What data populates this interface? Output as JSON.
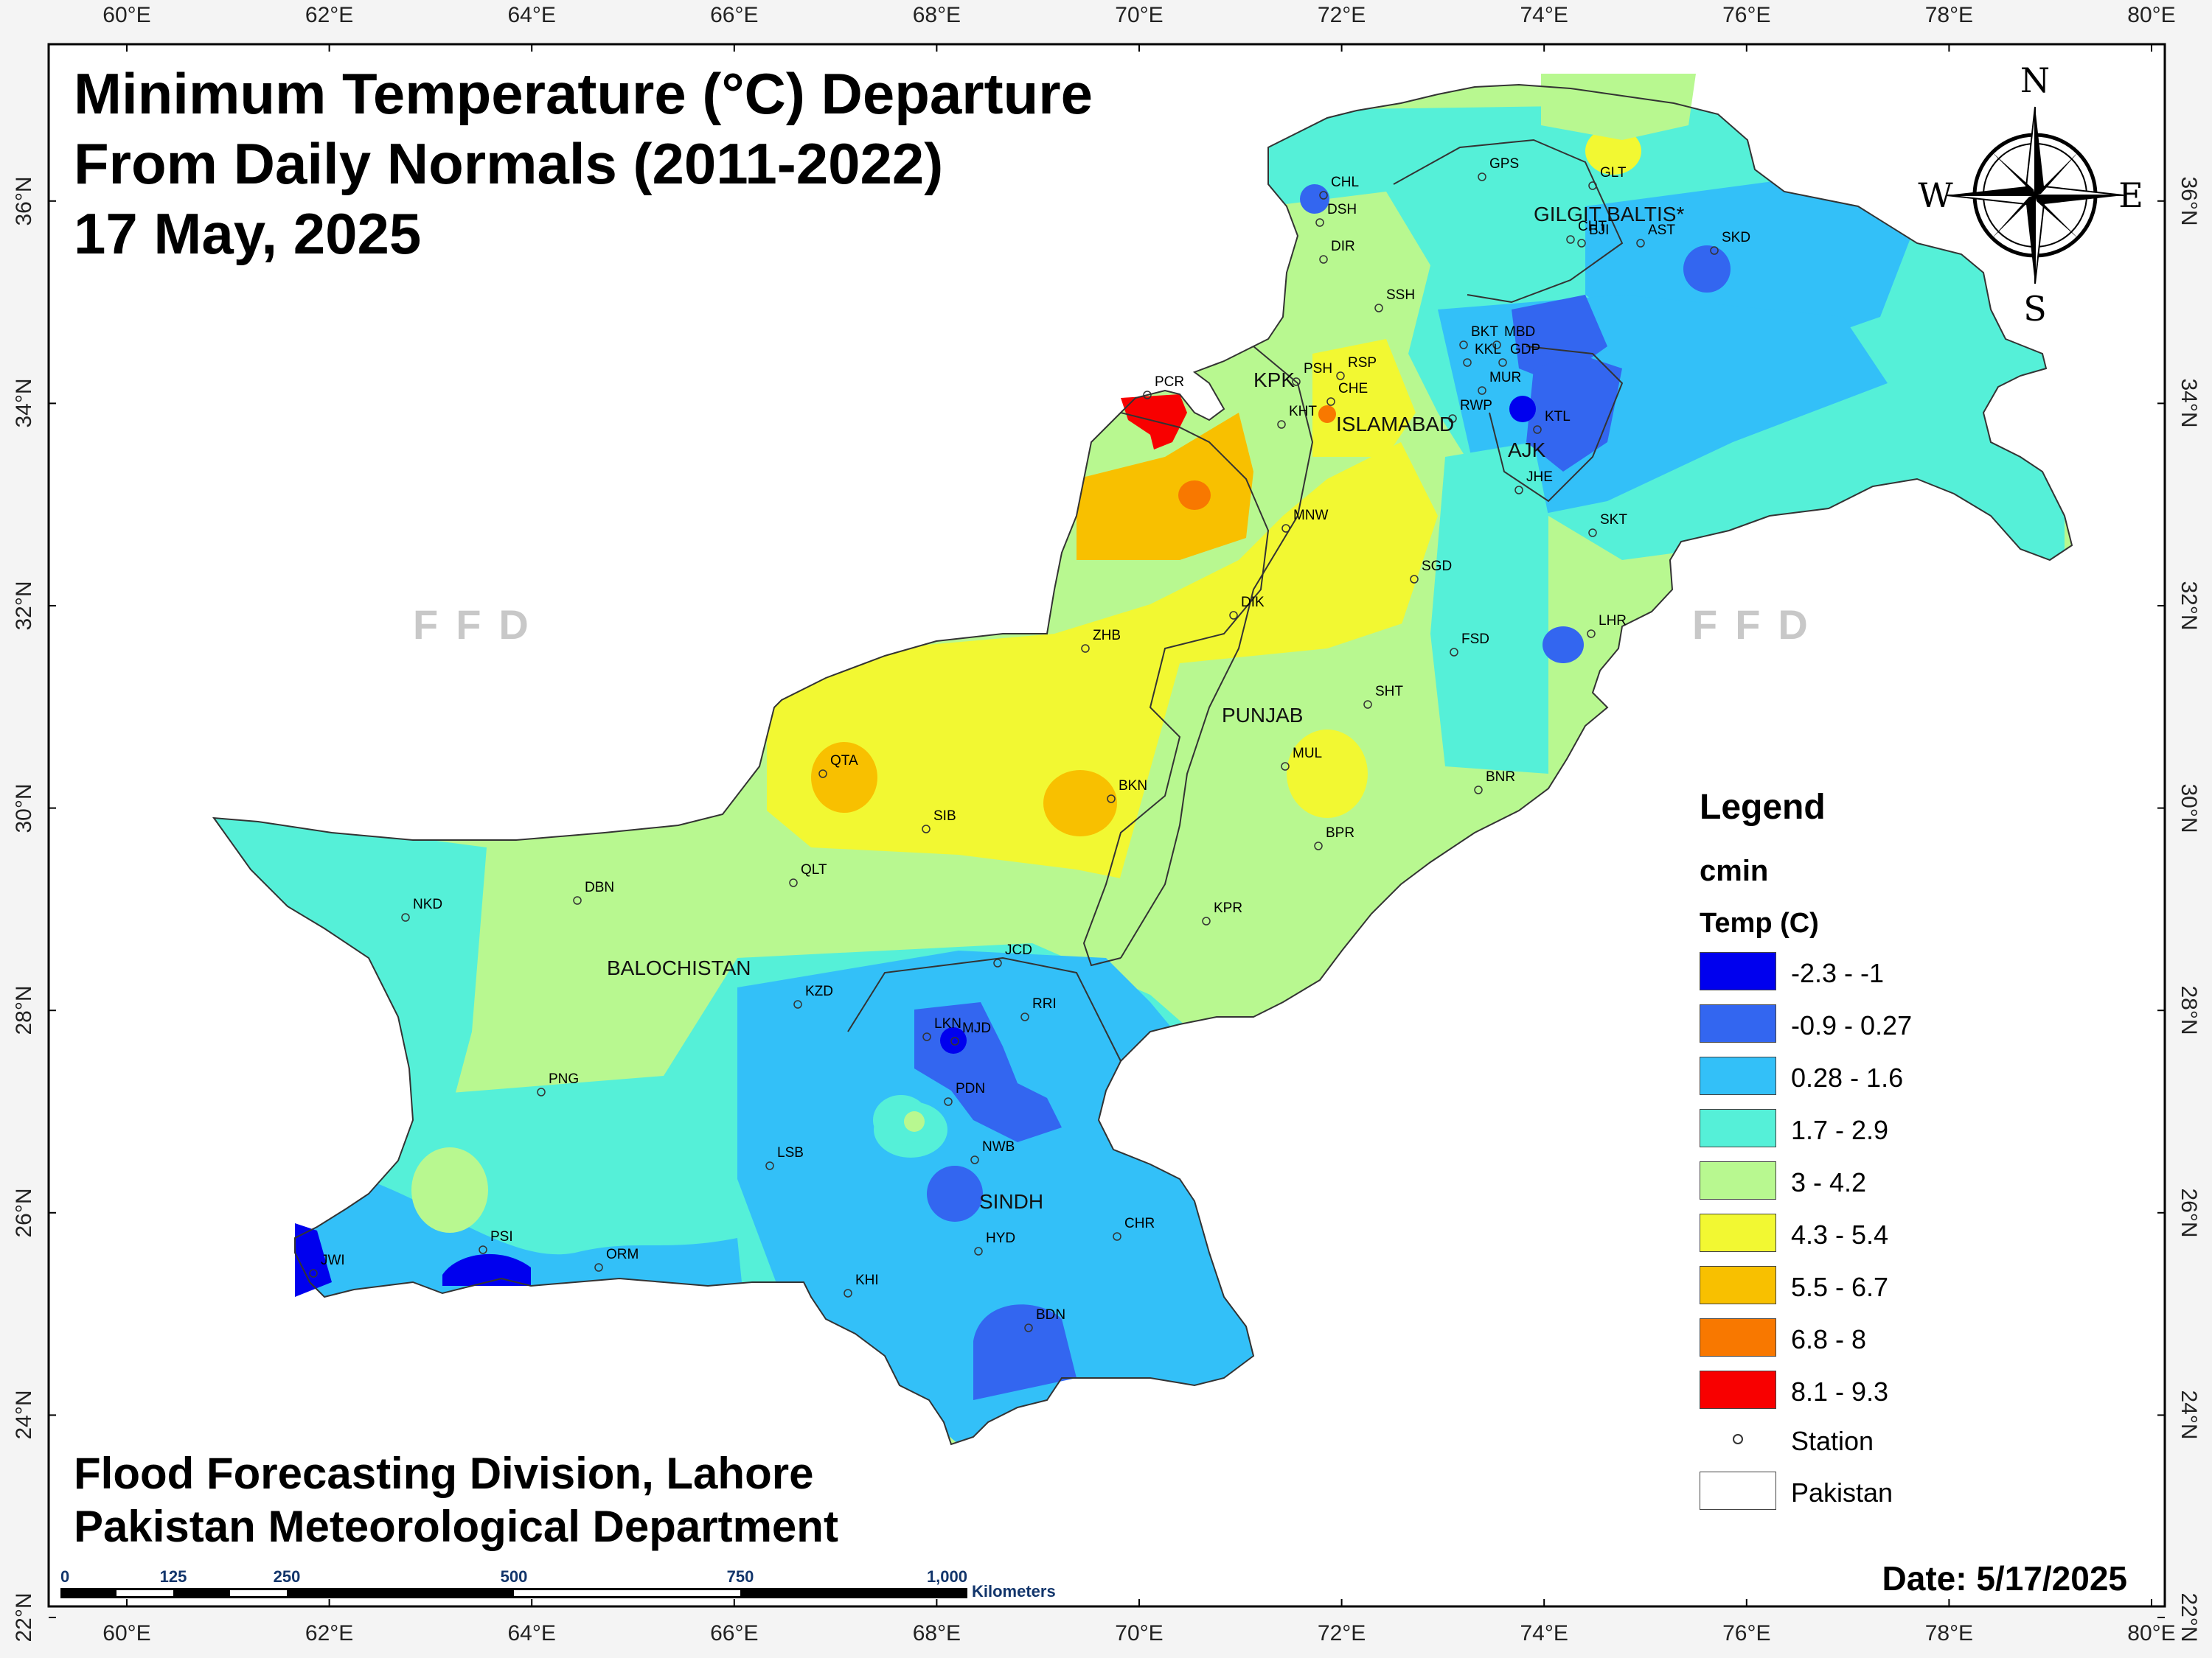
{
  "title": {
    "line1": "Minimum Temperature (°C) Departure",
    "line2": "From Daily Normals (2011-2022)",
    "line3": "17 May, 2025"
  },
  "footer": {
    "line1": "Flood Forecasting Division, Lahore",
    "line2": "Pakistan Meteorological Department"
  },
  "date_label": "Date: 5/17/2025",
  "watermark": "FFD",
  "axes": {
    "longitudes": [
      "60°E",
      "62°E",
      "64°E",
      "66°E",
      "68°E",
      "70°E",
      "72°E",
      "74°E",
      "76°E",
      "78°E",
      "80°E"
    ],
    "latitudes": [
      "36°N",
      "34°N",
      "32°N",
      "30°N",
      "28°N",
      "26°N",
      "24°N",
      "22°N"
    ]
  },
  "compass": {
    "n": "N",
    "s": "S",
    "e": "E",
    "w": "W"
  },
  "legend": {
    "heading": "Legend",
    "layer": "cmin",
    "field": "Temp (C)",
    "classes": [
      {
        "label": "-2.3 - -1",
        "color": "#0000ee"
      },
      {
        "label": "-0.9 - 0.27",
        "color": "#3366f0"
      },
      {
        "label": "0.28 - 1.6",
        "color": "#33c0f8"
      },
      {
        "label": "1.7 - 2.9",
        "color": "#55f0d8"
      },
      {
        "label": "3 - 4.2",
        "color": "#b8f890"
      },
      {
        "label": "4.3 - 5.4",
        "color": "#f2f832"
      },
      {
        "label": "5.5 - 6.7",
        "color": "#f8c000"
      },
      {
        "label": "6.8 - 8",
        "color": "#f87800"
      },
      {
        "label": "8.1 - 9.3",
        "color": "#f80000"
      }
    ],
    "station_label": "Station",
    "country_label": "Pakistan"
  },
  "regions": [
    "GILGIT BALTIS*",
    "KPK",
    "ISLAMABAD",
    "AJK",
    "PUNJAB",
    "BALOCHISTAN",
    "SINDH"
  ],
  "stations": [
    "GPS",
    "GLT",
    "CHL",
    "DSH",
    "DIR",
    "CHT",
    "BJI",
    "AST",
    "SKD",
    "SSH",
    "BKT",
    "MBD",
    "KKL",
    "GDP",
    "MUR",
    "PSH",
    "RSP",
    "PCR",
    "CHE",
    "KHT",
    "RWP",
    "KTL",
    "JHE",
    "MNW",
    "SKT",
    "SGD",
    "DIK",
    "ZHB",
    "LHR",
    "FSD",
    "SHT",
    "QTA",
    "MUL",
    "BKN",
    "BNR",
    "SIB",
    "BPR",
    "NKD",
    "DBN",
    "QLT",
    "KPR",
    "JCD",
    "KZD",
    "RRI",
    "LKN",
    "MJD",
    "PNG",
    "PDN",
    "LSB",
    "NWB",
    "JWI",
    "PSI",
    "ORM",
    "HYD",
    "CHR",
    "KHI",
    "BDN"
  ],
  "scale": {
    "ticks": [
      "0",
      "125",
      "250",
      "500",
      "750",
      "1,000"
    ],
    "unit": "Kilometers"
  }
}
